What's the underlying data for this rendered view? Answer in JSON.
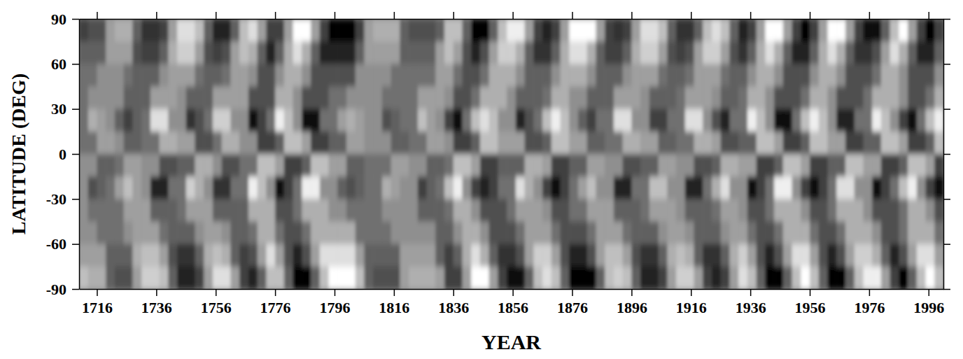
{
  "chart_data": {
    "type": "heatmap",
    "x_label": "YEAR",
    "y_label": "LATITUDE (DEG)",
    "xlim": [
      1710,
      2001
    ],
    "ylim": [
      -90,
      90
    ],
    "xticks": [
      1716,
      1736,
      1756,
      1776,
      1796,
      1816,
      1836,
      1856,
      1876,
      1896,
      1916,
      1936,
      1956,
      1976,
      1996
    ],
    "yticks": [
      -90,
      -60,
      -30,
      0,
      30,
      60,
      90
    ],
    "zlim": [
      -8,
      8
    ],
    "x": [
      1711.5,
      1714.5,
      1717.5,
      1720.5,
      1723.5,
      1726.5,
      1729.5,
      1732.5,
      1735.5,
      1738.5,
      1741.5,
      1744.5,
      1747.5,
      1750.5,
      1753.5,
      1756.5,
      1759.5,
      1762.5,
      1765.5,
      1768.5,
      1771.5,
      1774.5,
      1777.5,
      1780.5,
      1783.5,
      1786.5,
      1789.5,
      1792.5,
      1795.5,
      1798.5,
      1801.5,
      1804.5,
      1807.5,
      1810.5,
      1813.5,
      1816.5,
      1819.5,
      1822.5,
      1825.5,
      1828.5,
      1831.5,
      1834.5,
      1837.5,
      1840.5,
      1843.5,
      1846.5,
      1849.5,
      1852.5,
      1855.5,
      1858.5,
      1861.5,
      1864.5,
      1867.5,
      1870.5,
      1873.5,
      1876.5,
      1879.5,
      1882.5,
      1885.5,
      1888.5,
      1891.5,
      1894.5,
      1897.5,
      1900.5,
      1903.5,
      1906.5,
      1909.5,
      1912.5,
      1915.5,
      1918.5,
      1921.5,
      1924.5,
      1927.5,
      1930.5,
      1933.5,
      1936.5,
      1939.5,
      1942.5,
      1945.5,
      1948.5,
      1951.5,
      1954.5,
      1957.5,
      1960.5,
      1963.5,
      1966.5,
      1969.5,
      1972.5,
      1975.5,
      1978.5,
      1981.5,
      1984.5,
      1987.5,
      1990.5,
      1993.5,
      1996.5,
      1999.5
    ],
    "y": [
      82.5,
      67.5,
      52.5,
      37.5,
      22.5,
      7.5,
      -7.5,
      -22.5,
      -37.5,
      -52.5,
      -67.5,
      -82.5
    ],
    "values": [
      [
        -4,
        -3,
        -3,
        2,
        3,
        3,
        -2,
        -5,
        -5,
        -4,
        2,
        6,
        6,
        4,
        -2,
        -6,
        -6,
        -2,
        4,
        6,
        2,
        -4,
        -4,
        2,
        8,
        8,
        2,
        -4,
        -8,
        -8,
        -8,
        -4,
        2,
        3,
        3,
        3,
        -2,
        -3,
        -3,
        -3,
        -2,
        4,
        4,
        -2,
        -8,
        -8,
        -2,
        4,
        7,
        7,
        2,
        -4,
        -6,
        -4,
        2,
        8,
        8,
        8,
        2,
        -4,
        -5,
        -4,
        2,
        6,
        6,
        4,
        -2,
        -5,
        -5,
        -2,
        4,
        6,
        4,
        -2,
        -6,
        -4,
        2,
        8,
        8,
        2,
        -4,
        -8,
        -4,
        2,
        8,
        8,
        2,
        -4,
        -7,
        -7,
        -2,
        4,
        8,
        2,
        -4,
        -8,
        -4
      ],
      [
        -2,
        -2,
        -2,
        2,
        2,
        2,
        -3,
        -4,
        -4,
        -2,
        3,
        5,
        5,
        2,
        -3,
        -4,
        -3,
        2,
        4,
        3,
        -2,
        -6,
        -2,
        3,
        6,
        3,
        -2,
        -6,
        -6,
        -6,
        -6,
        -2,
        2,
        2,
        2,
        2,
        -2,
        -2,
        -2,
        -2,
        2,
        4,
        2,
        -3,
        -6,
        -3,
        2,
        5,
        5,
        3,
        -2,
        -5,
        -5,
        -2,
        3,
        6,
        6,
        3,
        -2,
        -4,
        -4,
        -2,
        3,
        5,
        5,
        2,
        -3,
        -4,
        -3,
        2,
        5,
        5,
        2,
        -3,
        -5,
        -2,
        3,
        6,
        3,
        -2,
        -6,
        -6,
        -2,
        3,
        6,
        3,
        -2,
        -5,
        -5,
        -3,
        2,
        6,
        3,
        -2,
        -6,
        -6,
        -2
      ],
      [
        -1,
        -1,
        1,
        1,
        1,
        -1,
        -2,
        -2,
        -2,
        1,
        2,
        2,
        2,
        -1,
        -2,
        -2,
        -1,
        2,
        2,
        1,
        -3,
        -3,
        1,
        3,
        3,
        1,
        -3,
        -3,
        -3,
        -3,
        -3,
        1,
        1,
        1,
        1,
        -1,
        -1,
        -1,
        -1,
        -1,
        2,
        2,
        -1,
        -3,
        -3,
        -1,
        3,
        3,
        3,
        1,
        -2,
        -2,
        -2,
        1,
        3,
        3,
        3,
        1,
        -2,
        -2,
        -2,
        1,
        2,
        2,
        2,
        -1,
        -2,
        -2,
        -1,
        2,
        2,
        2,
        -1,
        -2,
        -2,
        1,
        3,
        3,
        1,
        -3,
        -3,
        -3,
        1,
        3,
        3,
        1,
        -3,
        -3,
        -3,
        -1,
        3,
        3,
        1,
        -3,
        -3,
        -3,
        1
      ],
      [
        -1,
        1,
        1,
        1,
        1,
        -2,
        -2,
        -2,
        2,
        2,
        2,
        1,
        -2,
        -2,
        -2,
        2,
        2,
        2,
        2,
        -3,
        -3,
        -3,
        3,
        3,
        1,
        -3,
        -3,
        -3,
        -1,
        -1,
        1,
        1,
        1,
        1,
        -1,
        -1,
        -1,
        -1,
        2,
        2,
        2,
        1,
        -3,
        -3,
        -1,
        3,
        3,
        3,
        1,
        -2,
        -2,
        -2,
        -1,
        3,
        3,
        1,
        1,
        -2,
        -2,
        -2,
        2,
        2,
        2,
        1,
        -2,
        -2,
        -2,
        -1,
        2,
        2,
        2,
        1,
        -2,
        -2,
        -1,
        3,
        3,
        1,
        -3,
        -3,
        -3,
        -1,
        3,
        3,
        1,
        -3,
        -3,
        -3,
        -1,
        3,
        3,
        3,
        1,
        -3,
        -3,
        -1,
        3
      ],
      [
        -1,
        3,
        2,
        1,
        -2,
        -4,
        -2,
        -1,
        6,
        6,
        1,
        1,
        -5,
        -3,
        -1,
        5,
        5,
        1,
        1,
        -7,
        -4,
        -1,
        7,
        4,
        1,
        -7,
        -7,
        -1,
        -1,
        2,
        3,
        2,
        1,
        1,
        -3,
        -2,
        -1,
        -1,
        4,
        2,
        1,
        -4,
        -7,
        -1,
        4,
        6,
        4,
        1,
        1,
        -6,
        -3,
        -1,
        4,
        7,
        4,
        1,
        -2,
        -4,
        -1,
        -1,
        6,
        6,
        1,
        1,
        -4,
        -4,
        -1,
        -1,
        6,
        6,
        1,
        -3,
        -6,
        -1,
        -1,
        7,
        4,
        1,
        -7,
        -7,
        -1,
        4,
        7,
        4,
        1,
        -6,
        -6,
        -1,
        -1,
        7,
        4,
        1,
        -4,
        -7,
        -1,
        4,
        7
      ],
      [
        -1,
        -1,
        2,
        2,
        1,
        -2,
        -2,
        -1,
        -1,
        3,
        3,
        2,
        2,
        -3,
        -3,
        -1,
        3,
        3,
        1,
        1,
        -4,
        -4,
        -2,
        4,
        4,
        2,
        -4,
        -4,
        -2,
        -2,
        2,
        2,
        1,
        1,
        1,
        -2,
        -2,
        -1,
        -1,
        2,
        2,
        1,
        -4,
        -4,
        -2,
        4,
        4,
        2,
        2,
        2,
        -3,
        -3,
        -2,
        4,
        4,
        2,
        2,
        -2,
        -2,
        -1,
        -1,
        3,
        3,
        2,
        2,
        -2,
        -2,
        -1,
        -1,
        3,
        3,
        2,
        -3,
        -3,
        -2,
        -2,
        4,
        4,
        2,
        -4,
        -4,
        -2,
        4,
        4,
        2,
        2,
        -4,
        -4,
        -2,
        -2,
        4,
        4,
        2,
        -4,
        -4,
        -2,
        4
      ],
      [
        1,
        1,
        -2,
        -2,
        -1,
        2,
        2,
        1,
        1,
        -3,
        -3,
        -2,
        -2,
        3,
        3,
        1,
        -3,
        -3,
        -1,
        -1,
        4,
        4,
        2,
        -4,
        -4,
        -2,
        4,
        4,
        2,
        2,
        -2,
        -2,
        -1,
        -1,
        -1,
        2,
        2,
        1,
        1,
        -2,
        -2,
        -1,
        4,
        4,
        2,
        -4,
        -4,
        -2,
        -2,
        -2,
        3,
        3,
        2,
        -4,
        -4,
        -2,
        -2,
        2,
        2,
        1,
        1,
        -3,
        -3,
        -2,
        -2,
        2,
        2,
        1,
        1,
        -3,
        -3,
        -2,
        3,
        3,
        2,
        2,
        -4,
        -4,
        -2,
        4,
        4,
        2,
        -4,
        -4,
        -2,
        -2,
        4,
        4,
        2,
        2,
        -4,
        -4,
        -2,
        4,
        4,
        2,
        -4
      ],
      [
        1,
        -3,
        -2,
        -1,
        2,
        4,
        2,
        1,
        -6,
        -6,
        -1,
        -1,
        5,
        3,
        1,
        -5,
        -5,
        -1,
        -1,
        7,
        4,
        1,
        -7,
        -4,
        -1,
        7,
        7,
        1,
        1,
        -2,
        -3,
        -2,
        -1,
        -1,
        3,
        2,
        1,
        1,
        -4,
        -2,
        -1,
        4,
        7,
        1,
        -4,
        -6,
        -4,
        -1,
        -1,
        6,
        3,
        1,
        -4,
        -7,
        -4,
        -1,
        2,
        4,
        1,
        1,
        -6,
        -6,
        -1,
        -1,
        4,
        4,
        1,
        1,
        -6,
        -6,
        -1,
        3,
        6,
        1,
        1,
        -7,
        -4,
        -1,
        7,
        7,
        1,
        -4,
        -7,
        -4,
        -1,
        6,
        6,
        1,
        1,
        -7,
        -4,
        -1,
        4,
        7,
        1,
        -4,
        -7
      ],
      [
        1,
        -1,
        -1,
        -1,
        -1,
        2,
        2,
        2,
        -2,
        -2,
        -2,
        -1,
        2,
        2,
        2,
        -2,
        -2,
        -2,
        -2,
        3,
        3,
        3,
        -3,
        -3,
        -1,
        3,
        3,
        3,
        1,
        1,
        -1,
        -1,
        -1,
        -1,
        1,
        1,
        1,
        1,
        -2,
        -2,
        -2,
        -1,
        3,
        3,
        1,
        -3,
        -3,
        -3,
        -1,
        2,
        2,
        2,
        1,
        -3,
        -3,
        -1,
        -1,
        2,
        2,
        2,
        -2,
        -2,
        -2,
        -1,
        2,
        2,
        2,
        1,
        -2,
        -2,
        -2,
        -1,
        2,
        2,
        1,
        -3,
        -3,
        -1,
        3,
        3,
        3,
        1,
        -3,
        -3,
        -1,
        3,
        3,
        3,
        1,
        -3,
        -3,
        -3,
        -1,
        3,
        3,
        1,
        -3
      ],
      [
        1,
        1,
        -1,
        -1,
        -1,
        1,
        2,
        2,
        2,
        -1,
        -2,
        -2,
        -2,
        1,
        2,
        2,
        1,
        -2,
        -2,
        -1,
        3,
        3,
        -1,
        -3,
        -3,
        -1,
        3,
        3,
        3,
        3,
        3,
        -1,
        -1,
        -1,
        -1,
        1,
        1,
        1,
        1,
        1,
        -2,
        -2,
        1,
        3,
        3,
        1,
        -3,
        -3,
        -3,
        -1,
        2,
        2,
        2,
        -1,
        -3,
        -3,
        -3,
        -1,
        2,
        2,
        2,
        -1,
        -2,
        -2,
        -2,
        1,
        2,
        2,
        1,
        -2,
        -2,
        -2,
        1,
        2,
        2,
        -1,
        -3,
        -3,
        -1,
        3,
        3,
        3,
        -1,
        -3,
        -3,
        -1,
        3,
        3,
        3,
        1,
        -3,
        -3,
        -1,
        3,
        3,
        3,
        -1
      ],
      [
        2,
        2,
        2,
        -2,
        -2,
        -2,
        3,
        4,
        4,
        2,
        -3,
        -5,
        -5,
        -2,
        3,
        4,
        3,
        -2,
        -4,
        -3,
        2,
        6,
        2,
        -3,
        -6,
        -3,
        2,
        6,
        6,
        6,
        6,
        2,
        -2,
        -2,
        -2,
        -2,
        2,
        2,
        2,
        2,
        -2,
        -4,
        -2,
        3,
        6,
        3,
        -2,
        -5,
        -5,
        -3,
        2,
        5,
        5,
        2,
        -3,
        -6,
        -6,
        -3,
        2,
        4,
        4,
        2,
        -3,
        -5,
        -5,
        -2,
        3,
        4,
        3,
        -2,
        -5,
        -5,
        -2,
        3,
        5,
        2,
        -3,
        -6,
        -3,
        2,
        6,
        6,
        2,
        -3,
        -6,
        -3,
        2,
        5,
        5,
        3,
        -2,
        -6,
        -3,
        2,
        6,
        6,
        2
      ],
      [
        4,
        3,
        3,
        -2,
        -3,
        -3,
        2,
        5,
        5,
        4,
        -2,
        -6,
        -6,
        -4,
        2,
        6,
        6,
        2,
        -4,
        -6,
        -2,
        4,
        4,
        -2,
        -8,
        -8,
        -2,
        4,
        8,
        8,
        8,
        4,
        -2,
        -3,
        -3,
        -3,
        2,
        3,
        3,
        3,
        2,
        -4,
        -4,
        2,
        8,
        8,
        2,
        -4,
        -7,
        -7,
        -2,
        4,
        6,
        4,
        -2,
        -8,
        -8,
        -8,
        -2,
        4,
        5,
        4,
        -2,
        -6,
        -6,
        -4,
        2,
        5,
        5,
        2,
        -4,
        -6,
        -4,
        2,
        6,
        4,
        -2,
        -8,
        -8,
        -2,
        4,
        8,
        4,
        -2,
        -8,
        -8,
        -2,
        4,
        7,
        7,
        2,
        -4,
        -8,
        -2,
        4,
        8,
        4
      ]
    ]
  }
}
